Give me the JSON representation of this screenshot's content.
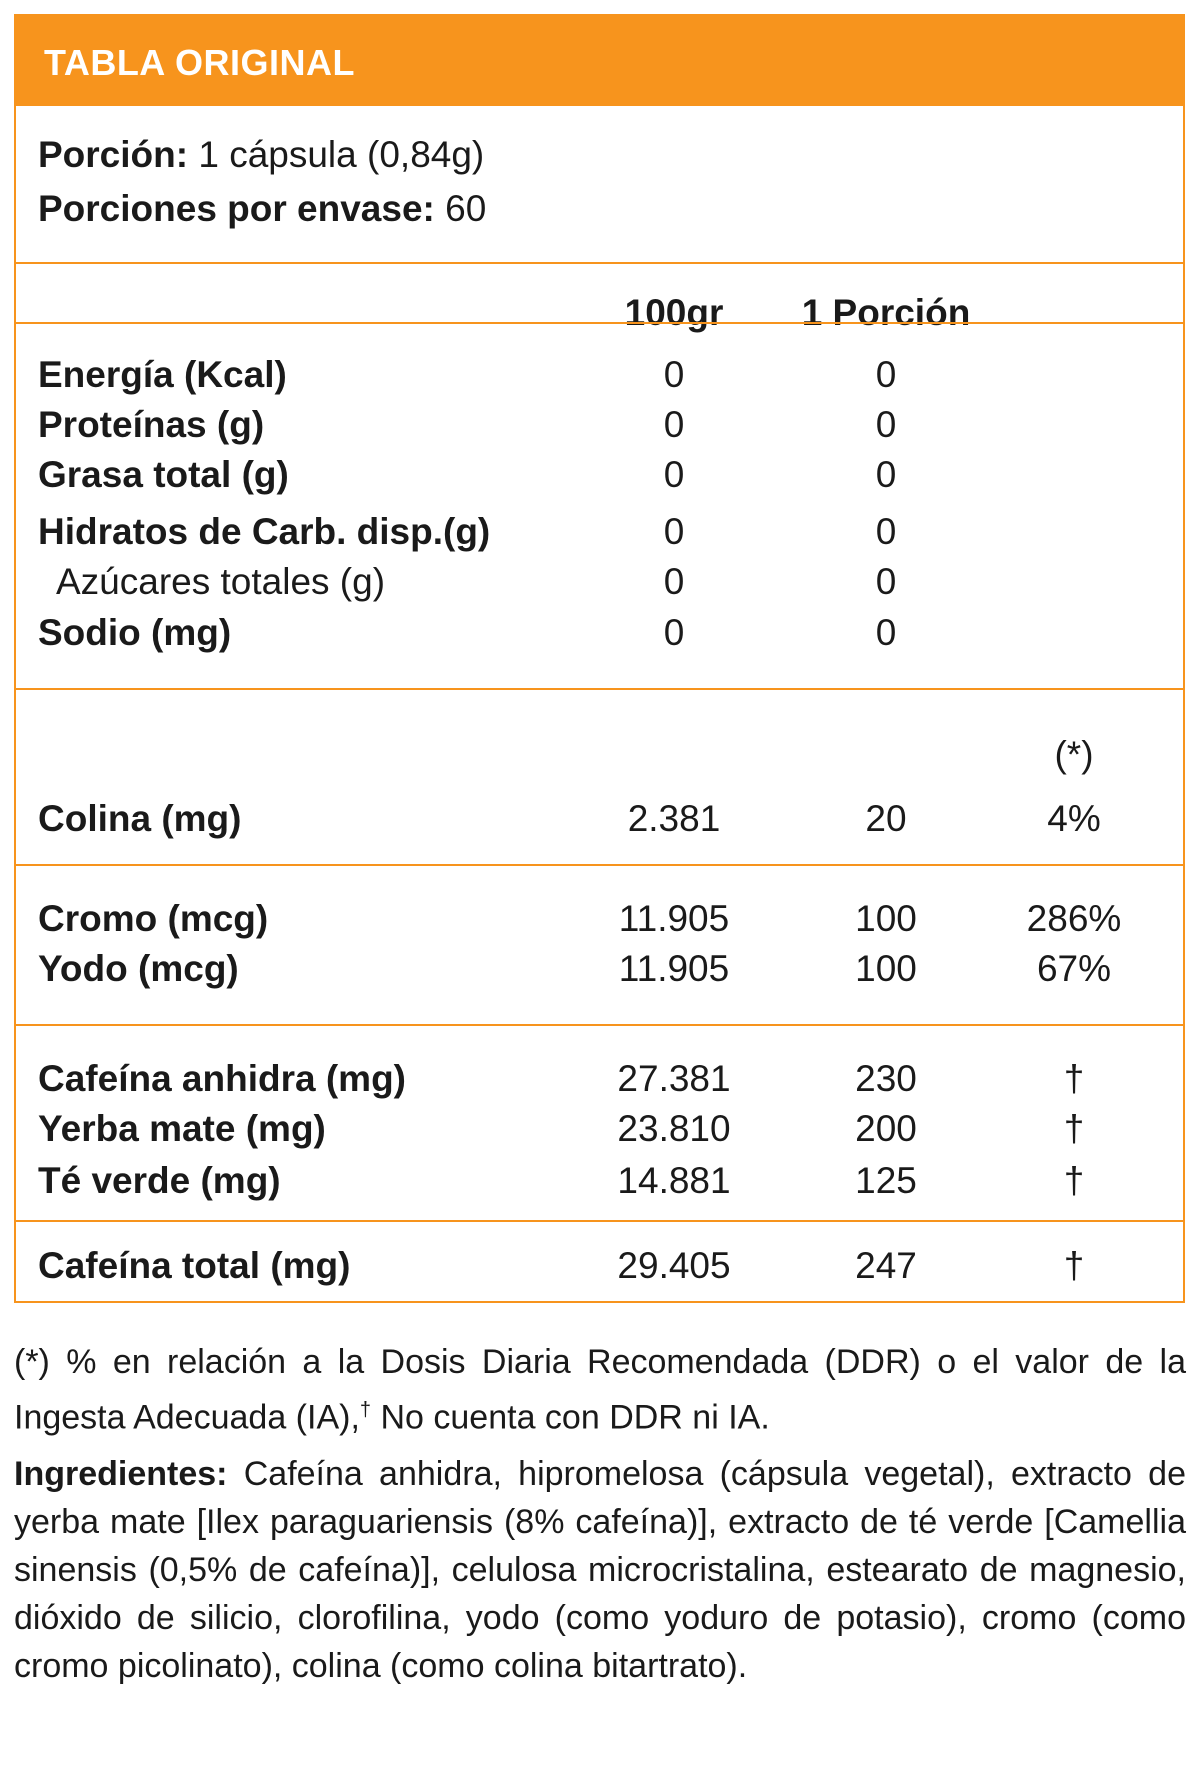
{
  "header": {
    "title": "TABLA ORIGINAL"
  },
  "serving": {
    "portion_label": "Porción:",
    "portion_value": "1 cápsula (0,84g)",
    "per_container_label": "Porciones por envase:",
    "per_container_value": "60"
  },
  "columns": {
    "per100": "100gr",
    "per_portion": "1 Porción",
    "ddr_marker": "(*)"
  },
  "macros": [
    {
      "label": "Energía (Kcal)",
      "per100": "0",
      "portion": "0"
    },
    {
      "label": "Proteínas (g)",
      "per100": "0",
      "portion": "0"
    },
    {
      "label": "Grasa total (g)",
      "per100": "0",
      "portion": "0"
    },
    {
      "label": "Hidratos de Carb. disp.(g)",
      "per100": "0",
      "portion": "0"
    },
    {
      "label": "Azúcares totales (g)",
      "per100": "0",
      "portion": "0"
    },
    {
      "label": "Sodio (mg)",
      "per100": "0",
      "portion": "0"
    }
  ],
  "colina": {
    "label": "Colina (mg)",
    "per100": "2.381",
    "portion": "20",
    "pct": "4%"
  },
  "minerals": [
    {
      "label": "Cromo (mcg)",
      "per100": "11.905",
      "portion": "100",
      "pct": "286%"
    },
    {
      "label": "Yodo (mcg)",
      "per100": "11.905",
      "portion": "100",
      "pct": "67%"
    }
  ],
  "actives": [
    {
      "label": "Cafeína anhidra (mg)",
      "per100": "27.381",
      "portion": "230",
      "pct": "†"
    },
    {
      "label": "Yerba mate (mg)",
      "per100": "23.810",
      "portion": "200",
      "pct": "†"
    },
    {
      "label": "Té verde (mg)",
      "per100": "14.881",
      "portion": "125",
      "pct": "†"
    }
  ],
  "total_caffeine": {
    "label": "Cafeína total (mg)",
    "per100": "29.405",
    "portion": "247",
    "pct": "†"
  },
  "footnote": {
    "text_before": "(*) % en relación a la Dosis Diaria Recomendada (DDR) o el valor de la Ingesta Adecuada (IA),",
    "dagger": "†",
    "text_after": "No cuenta con DDR ni IA."
  },
  "ingredients": {
    "label": "Ingredientes:",
    "text": "Cafeína anhidra, hipromelosa (cápsula vegetal), extracto de yerba mate [Ilex paraguariensis (8% cafeína)], extracto de té verde [Camellia sinensis (0,5% de cafeína)], celulosa microcristalina, estearato de magnesio, dióxido de silicio, clorofilina, yodo (como yoduro de potasio), cromo (como cromo picolinato), colina (como colina bitartrato)."
  },
  "colors": {
    "accent": "#f7941d",
    "text": "#1a1a1a",
    "header_text": "#ffffff"
  }
}
